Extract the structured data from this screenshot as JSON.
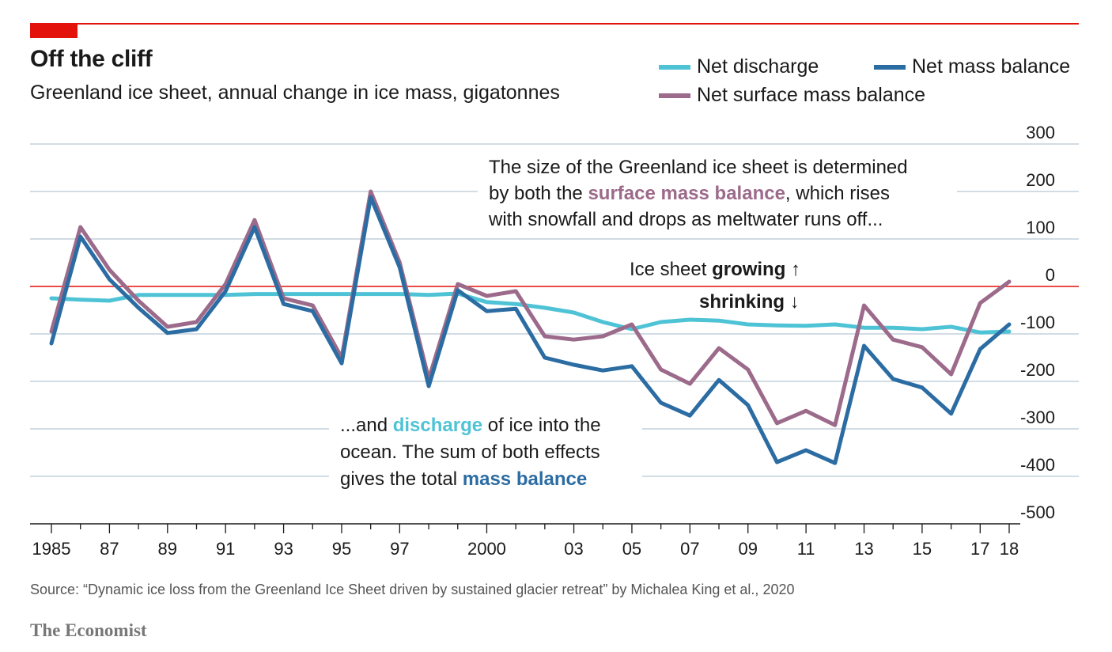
{
  "header": {
    "title": "Off the cliff",
    "subtitle": "Greenland ice sheet, annual change in ice mass, gigatonnes"
  },
  "legend": [
    {
      "label": "Net discharge",
      "color": "#4fc3d6"
    },
    {
      "label": "Net mass balance",
      "color": "#2b6ca3"
    },
    {
      "label": "Net surface mass balance",
      "color": "#9c6a8a"
    }
  ],
  "annotations": {
    "surface_line1": "The size of the Greenland ice sheet is determined",
    "surface_line2_pre": "by both the ",
    "surface_line2_em": "surface mass balance",
    "surface_line2_post": ", which rises",
    "surface_line3": "with snowfall and drops as meltwater runs off...",
    "growing_pre": "Ice sheet ",
    "growing_em": "growing",
    "growing_arrow": " ↑",
    "shrinking_em": "shrinking",
    "shrinking_arrow": " ↓",
    "discharge_line1_pre": "...and ",
    "discharge_line1_em": "discharge",
    "discharge_line1_post": " of ice into the",
    "discharge_line2": "ocean. The sum of both effects",
    "discharge_line3_pre": "gives the total ",
    "discharge_line3_em": "mass balance"
  },
  "footer": {
    "source": "Source: “Dynamic ice loss from the Greenland Ice Sheet driven by sustained glacier retreat” by Michalea King et al., 2020",
    "brand": "The Economist"
  },
  "chart_data": {
    "type": "line",
    "x": [
      1985,
      1986,
      1987,
      1988,
      1989,
      1990,
      1991,
      1992,
      1993,
      1994,
      1995,
      1996,
      1997,
      1998,
      1999,
      2000,
      2001,
      2002,
      2003,
      2004,
      2005,
      2006,
      2007,
      2008,
      2009,
      2010,
      2011,
      2012,
      2013,
      2014,
      2015,
      2016,
      2017,
      2018
    ],
    "xlim": [
      1985,
      2018
    ],
    "ylim": [
      -500,
      300
    ],
    "yticks": [
      300,
      200,
      100,
      0,
      -100,
      -200,
      -300,
      -400,
      -500
    ],
    "ytick_labels": [
      "300",
      "200",
      "100",
      "0",
      "-100",
      "-200",
      "-300",
      "-400",
      "-500"
    ],
    "xtick_labels": [
      {
        "x": 1985,
        "label": "1985"
      },
      {
        "x": 1987,
        "label": "87"
      },
      {
        "x": 1989,
        "label": "89"
      },
      {
        "x": 1991,
        "label": "91"
      },
      {
        "x": 1993,
        "label": "93"
      },
      {
        "x": 1995,
        "label": "95"
      },
      {
        "x": 1997,
        "label": "97"
      },
      {
        "x": 2000,
        "label": "2000"
      },
      {
        "x": 2003,
        "label": "03"
      },
      {
        "x": 2005,
        "label": "05"
      },
      {
        "x": 2007,
        "label": "07"
      },
      {
        "x": 2009,
        "label": "09"
      },
      {
        "x": 2011,
        "label": "11"
      },
      {
        "x": 2013,
        "label": "13"
      },
      {
        "x": 2015,
        "label": "15"
      },
      {
        "x": 2017,
        "label": "17"
      },
      {
        "x": 2018,
        "label": "18"
      }
    ],
    "series": [
      {
        "name": "Net discharge",
        "key": "discharge",
        "color": "#4fc3d6",
        "values": [
          -25,
          -28,
          -30,
          -18,
          -18,
          -18,
          -18,
          -16,
          -16,
          -16,
          -16,
          -16,
          -16,
          -18,
          -15,
          -33,
          -37,
          -45,
          -55,
          -75,
          -90,
          -75,
          -70,
          -72,
          -80,
          -82,
          -83,
          -80,
          -87,
          -87,
          -90,
          -85,
          -97,
          -95
        ]
      },
      {
        "name": "Net surface mass balance",
        "key": "smb",
        "color": "#9c6a8a",
        "values": [
          -95,
          125,
          35,
          -30,
          -85,
          -75,
          5,
          140,
          -25,
          -40,
          -150,
          200,
          50,
          -195,
          5,
          -20,
          -10,
          -105,
          -112,
          -105,
          -80,
          -175,
          -205,
          -130,
          -175,
          -288,
          -262,
          -292,
          -40,
          -112,
          -128,
          -185,
          -35,
          10
        ]
      },
      {
        "name": "Net mass balance",
        "key": "mb",
        "color": "#2b6ca3",
        "values": [
          -120,
          105,
          15,
          -45,
          -98,
          -90,
          -10,
          125,
          -37,
          -52,
          -162,
          188,
          40,
          -210,
          -8,
          -52,
          -47,
          -150,
          -165,
          -177,
          -168,
          -245,
          -272,
          -197,
          -250,
          -370,
          -345,
          -372,
          -125,
          -195,
          -213,
          -268,
          -132,
          -80
        ]
      }
    ]
  }
}
